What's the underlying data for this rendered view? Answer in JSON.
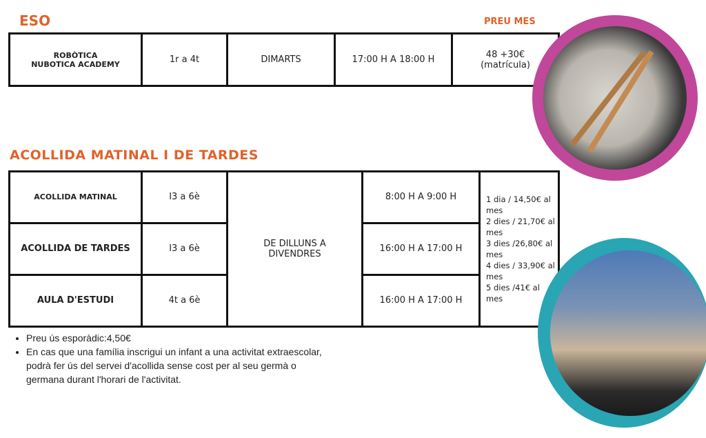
{
  "eso": {
    "title": "ESO",
    "price_header": "PREU MES",
    "row": {
      "activity_line1": "ROBÒTICA",
      "activity_line2": "NUBOTICA ACADEMY",
      "grades": "1r a 4t",
      "day": "DIMARTS",
      "time": "17:00 H A 18:00 H",
      "price_line1": "48 +30€",
      "price_line2": "(matrícula)"
    }
  },
  "acollida": {
    "title": "ACOLLIDA MATINAL I DE TARDES",
    "rows": [
      {
        "activity": "ACOLLIDA MATINAL",
        "grades": "I3 a 6è",
        "time": "8:00 H A 9:00 H"
      },
      {
        "activity": "ACOLLIDA DE TARDES",
        "grades": "I3 a 6è",
        "time": "16:00 H A 17:00 H"
      },
      {
        "activity": "AULA D'ESTUDI",
        "grades": "4t a 6è",
        "time": "16:00 H A 17:00 H"
      }
    ],
    "days": "DE DILLUNS A DIVENDRES",
    "prices": [
      "1 dia / 14,50€ al mes",
      "2 dies / 21,70€ al mes",
      "3 dies /26,80€ al mes",
      "4 dies / 33,90€ al mes",
      "5 dies /41€ al mes"
    ]
  },
  "notes": [
    "Preu ús esporàdic:4,50€",
    "En cas que una família inscrigui un infant a una activitat extraescolar, podrà fer ús del servei d'acollida sense cost per al seu germà o germana durant l'horari de l'activitat."
  ],
  "colors": {
    "accent": "#e0622a",
    "ring_top": "#c0479a",
    "ring_bottom": "#2aa5b3"
  }
}
